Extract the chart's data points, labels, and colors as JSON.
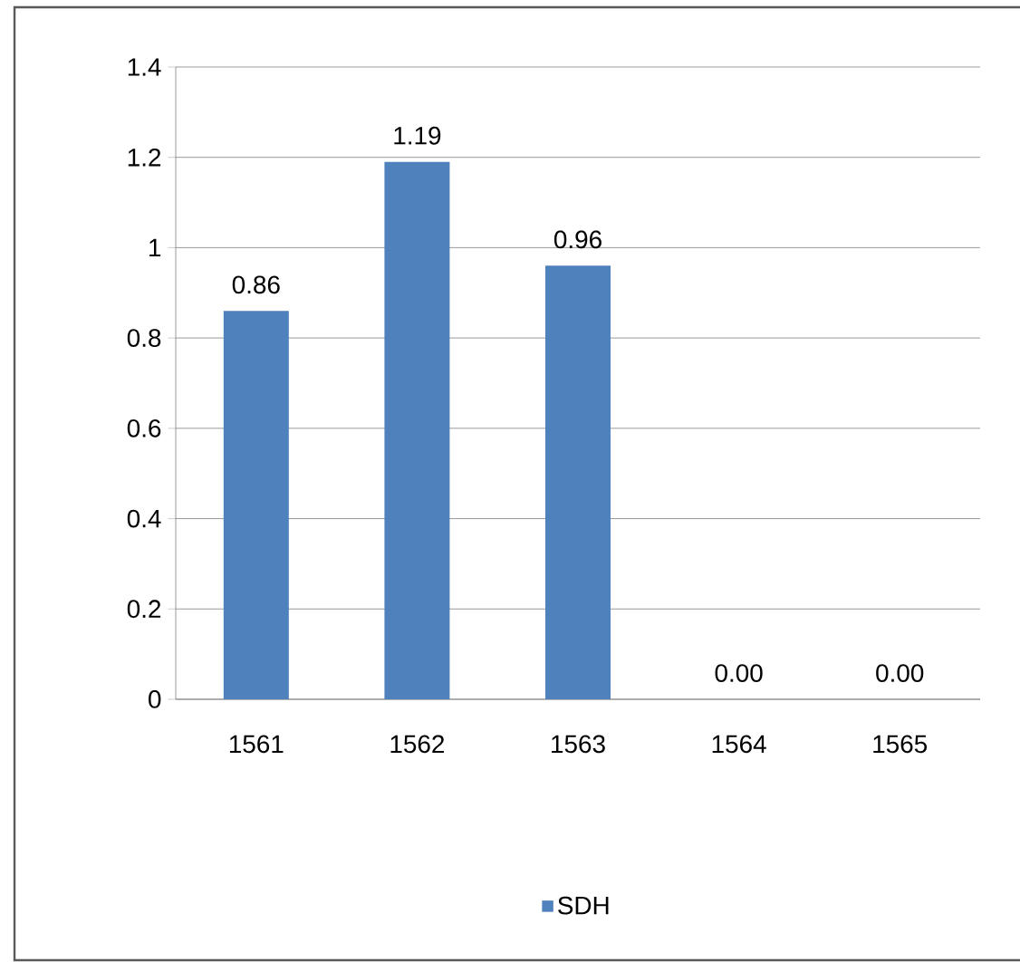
{
  "chart_data": {
    "type": "bar",
    "categories": [
      "1561",
      "1562",
      "1563",
      "1564",
      "1565"
    ],
    "series": [
      {
        "name": "SDH",
        "color": "#4f81bd",
        "values": [
          0.86,
          1.19,
          0.96,
          0,
          0
        ],
        "value_labels": [
          "0.86",
          "1.19",
          "0.96",
          "0.00",
          "0.00"
        ]
      }
    ],
    "ylim": [
      0,
      1.4
    ],
    "yticks": [
      0,
      0.2,
      0.4,
      0.6,
      0.8,
      1,
      1.2,
      1.4
    ],
    "grid": "y",
    "legend": "bottom"
  }
}
